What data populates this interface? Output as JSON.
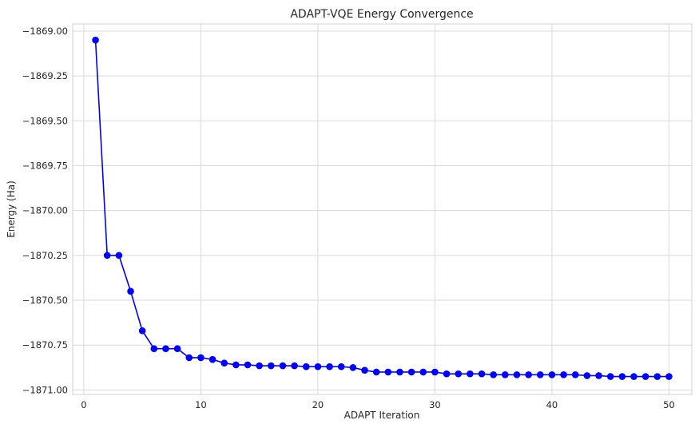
{
  "chart_data": {
    "type": "line",
    "title": "ADAPT-VQE Energy Convergence",
    "xlabel": "ADAPT Iteration",
    "ylabel": "Energy (Ha)",
    "xlim": [
      -0.95,
      51.95
    ],
    "ylim": [
      -1871.025,
      -1868.96
    ],
    "x_ticks": [
      0,
      10,
      20,
      30,
      40,
      50
    ],
    "x_tick_labels": [
      "0",
      "10",
      "20",
      "30",
      "40",
      "50"
    ],
    "y_ticks": [
      -1869.0,
      -1869.25,
      -1869.5,
      -1869.75,
      -1870.0,
      -1870.25,
      -1870.5,
      -1870.75,
      -1871.0
    ],
    "y_tick_labels": [
      "−1869.00",
      "−1869.25",
      "−1869.50",
      "−1869.75",
      "−1870.00",
      "−1870.25",
      "−1870.50",
      "−1870.75",
      "−1871.00"
    ],
    "grid": true,
    "series": [
      {
        "color": "#0000ff",
        "marker": "circle",
        "x": [
          1,
          2,
          3,
          4,
          5,
          6,
          7,
          8,
          9,
          10,
          11,
          12,
          13,
          14,
          15,
          16,
          17,
          18,
          19,
          20,
          21,
          22,
          23,
          24,
          25,
          26,
          27,
          28,
          29,
          30,
          31,
          32,
          33,
          34,
          35,
          36,
          37,
          38,
          39,
          40,
          41,
          42,
          43,
          44,
          45,
          46,
          47,
          48,
          49,
          50
        ],
        "y": [
          -1869.05,
          -1870.25,
          -1870.25,
          -1870.45,
          -1870.67,
          -1870.77,
          -1870.77,
          -1870.77,
          -1870.82,
          -1870.82,
          -1870.83,
          -1870.85,
          -1870.86,
          -1870.86,
          -1870.865,
          -1870.865,
          -1870.865,
          -1870.865,
          -1870.87,
          -1870.87,
          -1870.87,
          -1870.87,
          -1870.875,
          -1870.89,
          -1870.9,
          -1870.9,
          -1870.9,
          -1870.9,
          -1870.9,
          -1870.9,
          -1870.91,
          -1870.91,
          -1870.91,
          -1870.91,
          -1870.915,
          -1870.915,
          -1870.915,
          -1870.915,
          -1870.915,
          -1870.915,
          -1870.915,
          -1870.915,
          -1870.92,
          -1870.92,
          -1870.925,
          -1870.925,
          -1870.925,
          -1870.925,
          -1870.925,
          -1870.925
        ]
      }
    ]
  }
}
